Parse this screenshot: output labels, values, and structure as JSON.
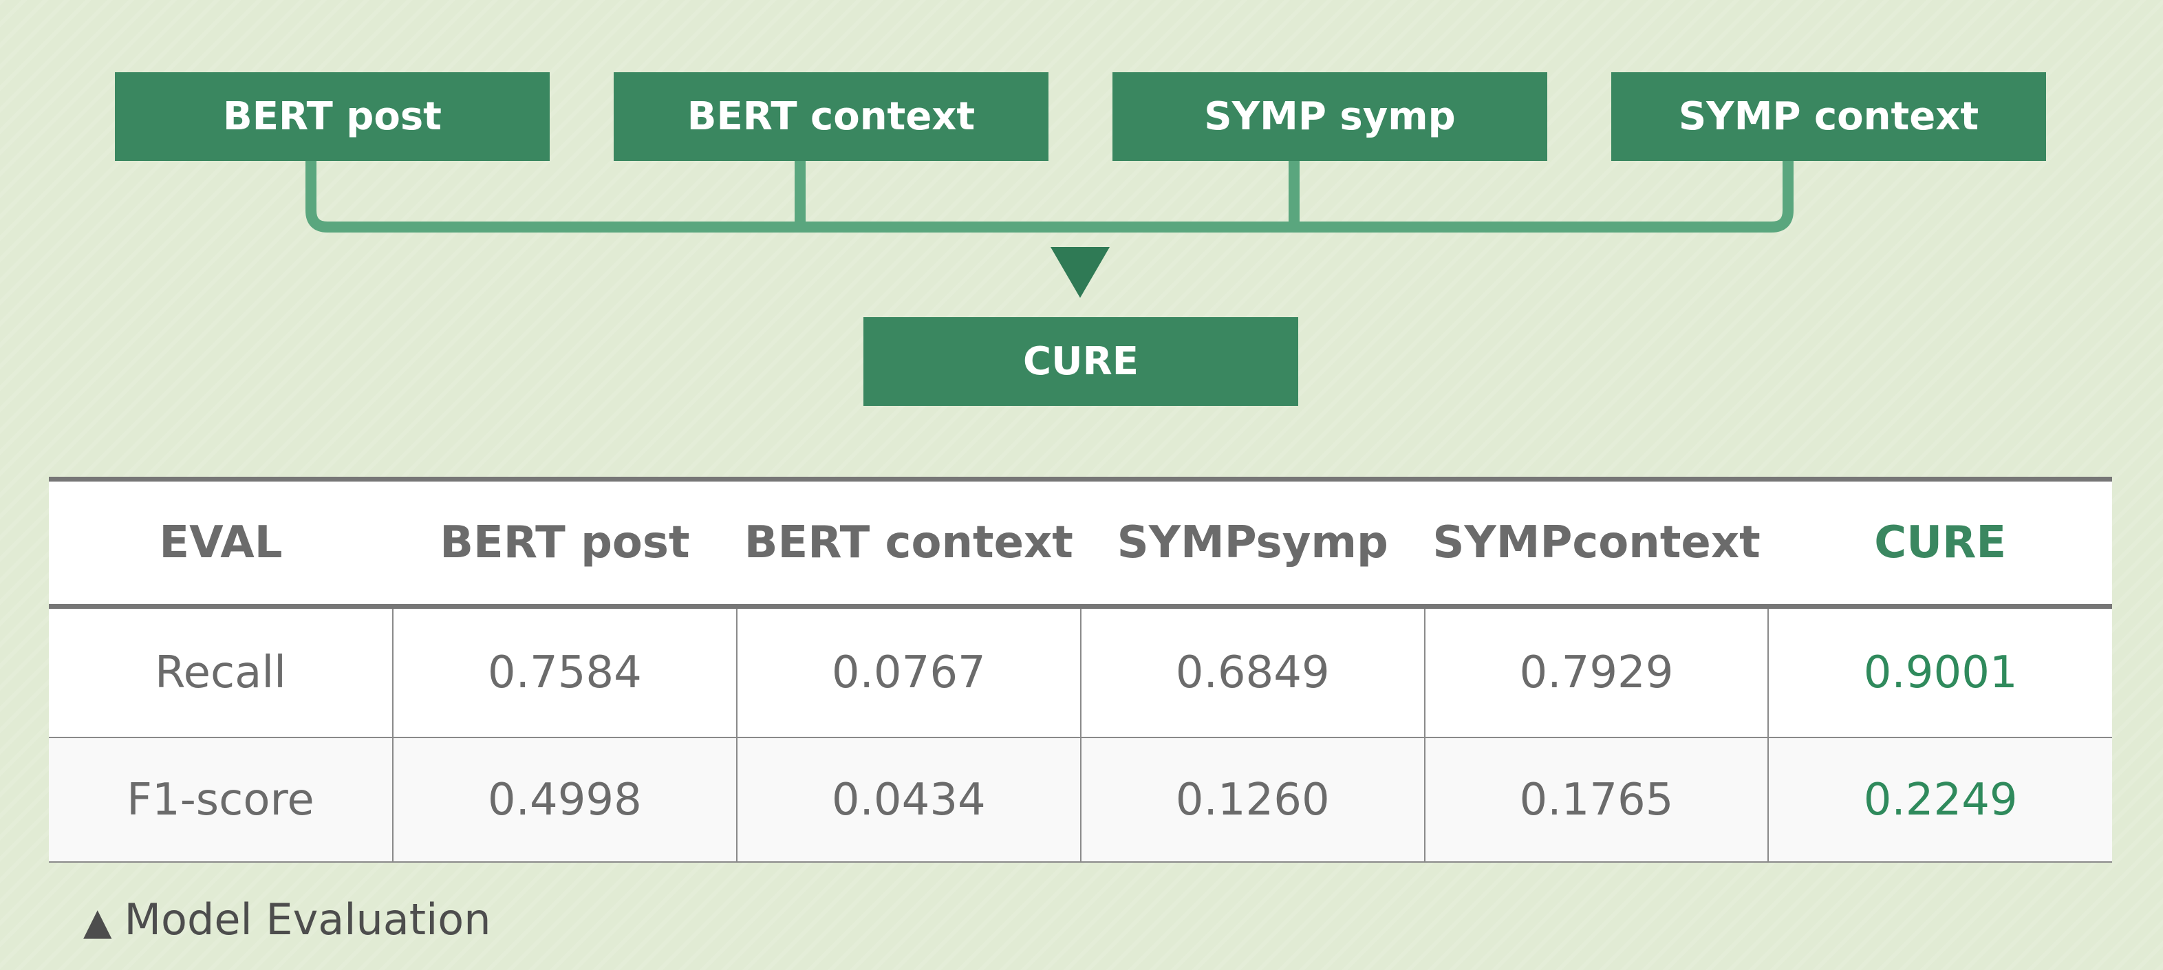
{
  "diagram": {
    "inputs": [
      "BERT post",
      "BERT context",
      "SYMP symp",
      "SYMP context"
    ],
    "output": "CURE"
  },
  "table": {
    "headers": [
      "EVAL",
      "BERT post",
      "BERT context",
      "SYMPsymp",
      "SYMPcontext",
      "CURE"
    ],
    "rows": [
      {
        "metric": "Recall",
        "values": [
          "0.7584",
          "0.0767",
          "0.6849",
          "0.7929",
          "0.9001"
        ]
      },
      {
        "metric": "F1-score",
        "values": [
          "0.4998",
          "0.0434",
          "0.1260",
          "0.1765",
          "0.2249"
        ]
      }
    ]
  },
  "caption": {
    "marker": "▲",
    "text": "Model Evaluation"
  },
  "colors": {
    "background": "#e1ebd4",
    "box": "#3a8760",
    "connector": "#5aa67e",
    "highlight": "#2f8a5c",
    "table_text": "#6b6b6b"
  }
}
